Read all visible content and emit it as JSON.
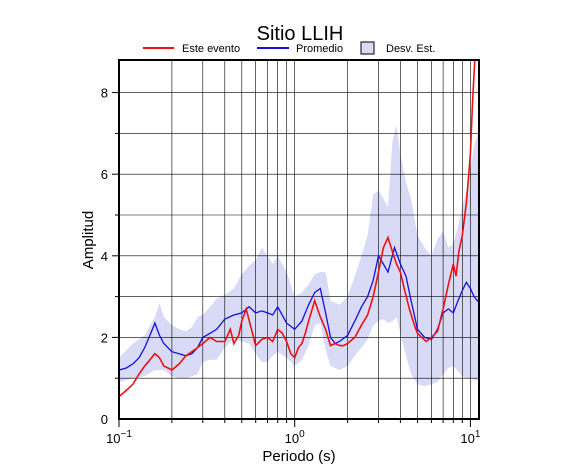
{
  "chart_data": {
    "type": "line",
    "title": "Sitio LLIH",
    "xlabel": "Periodo (s)",
    "ylabel": "Amplitud",
    "x_scale": "log",
    "xlim": [
      0.1,
      11.2
    ],
    "ylim": [
      0,
      8.8
    ],
    "x_ticks": [
      {
        "value": 0.1,
        "base": "10",
        "exp": "−1"
      },
      {
        "value": 1,
        "base": "10",
        "exp": "0"
      },
      {
        "value": 10,
        "base": "10",
        "exp": "1"
      }
    ],
    "y_ticks": [
      0,
      2,
      4,
      6,
      8
    ],
    "grid": true,
    "legend_position": "top",
    "colors": {
      "event": "#ee1111",
      "mean": "#1111dd",
      "band": "#d8daf6"
    },
    "series": [
      {
        "name": "Este evento",
        "color": "#ee1111",
        "points": [
          [
            0.1,
            0.55
          ],
          [
            0.11,
            0.7
          ],
          [
            0.12,
            0.85
          ],
          [
            0.13,
            1.1
          ],
          [
            0.14,
            1.3
          ],
          [
            0.15,
            1.45
          ],
          [
            0.16,
            1.6
          ],
          [
            0.17,
            1.5
          ],
          [
            0.18,
            1.3
          ],
          [
            0.19,
            1.25
          ],
          [
            0.2,
            1.2
          ],
          [
            0.22,
            1.35
          ],
          [
            0.24,
            1.55
          ],
          [
            0.26,
            1.65
          ],
          [
            0.28,
            1.75
          ],
          [
            0.3,
            1.85
          ],
          [
            0.33,
            2.0
          ],
          [
            0.36,
            1.9
          ],
          [
            0.4,
            1.9
          ],
          [
            0.43,
            2.2
          ],
          [
            0.45,
            1.85
          ],
          [
            0.48,
            2.05
          ],
          [
            0.5,
            2.4
          ],
          [
            0.53,
            2.7
          ],
          [
            0.56,
            2.3
          ],
          [
            0.6,
            1.8
          ],
          [
            0.65,
            1.95
          ],
          [
            0.7,
            2.0
          ],
          [
            0.75,
            1.9
          ],
          [
            0.8,
            2.2
          ],
          [
            0.85,
            2.1
          ],
          [
            0.9,
            1.9
          ],
          [
            0.95,
            1.6
          ],
          [
            1.0,
            1.5
          ],
          [
            1.05,
            1.75
          ],
          [
            1.1,
            1.85
          ],
          [
            1.15,
            2.1
          ],
          [
            1.2,
            2.4
          ],
          [
            1.3,
            2.9
          ],
          [
            1.4,
            2.5
          ],
          [
            1.5,
            2.2
          ],
          [
            1.6,
            1.8
          ],
          [
            1.7,
            1.85
          ],
          [
            1.8,
            1.8
          ],
          [
            1.9,
            1.8
          ],
          [
            2.0,
            1.85
          ],
          [
            2.2,
            2.0
          ],
          [
            2.4,
            2.3
          ],
          [
            2.6,
            2.55
          ],
          [
            2.8,
            3.0
          ],
          [
            3.0,
            3.6
          ],
          [
            3.2,
            4.2
          ],
          [
            3.4,
            4.45
          ],
          [
            3.6,
            4.1
          ],
          [
            3.8,
            3.8
          ],
          [
            4.0,
            3.6
          ],
          [
            4.2,
            3.2
          ],
          [
            4.5,
            2.7
          ],
          [
            4.8,
            2.3
          ],
          [
            5.0,
            2.1
          ],
          [
            5.3,
            2.0
          ],
          [
            5.6,
            1.9
          ],
          [
            6.0,
            2.0
          ],
          [
            6.5,
            2.15
          ],
          [
            7.0,
            2.7
          ],
          [
            7.5,
            3.3
          ],
          [
            8.0,
            3.8
          ],
          [
            8.3,
            3.5
          ],
          [
            8.6,
            4.1
          ],
          [
            9.0,
            4.5
          ],
          [
            9.5,
            5.3
          ],
          [
            10.0,
            6.5
          ],
          [
            10.3,
            7.8
          ],
          [
            10.6,
            8.8
          ]
        ]
      },
      {
        "name": "Promedio",
        "color": "#1111dd",
        "points": [
          [
            0.1,
            1.2
          ],
          [
            0.11,
            1.25
          ],
          [
            0.12,
            1.35
          ],
          [
            0.13,
            1.5
          ],
          [
            0.14,
            1.75
          ],
          [
            0.15,
            2.05
          ],
          [
            0.16,
            2.35
          ],
          [
            0.17,
            2.05
          ],
          [
            0.18,
            1.85
          ],
          [
            0.2,
            1.65
          ],
          [
            0.22,
            1.6
          ],
          [
            0.24,
            1.55
          ],
          [
            0.26,
            1.6
          ],
          [
            0.28,
            1.75
          ],
          [
            0.3,
            2.0
          ],
          [
            0.33,
            2.1
          ],
          [
            0.36,
            2.2
          ],
          [
            0.4,
            2.45
          ],
          [
            0.45,
            2.55
          ],
          [
            0.5,
            2.6
          ],
          [
            0.55,
            2.75
          ],
          [
            0.6,
            2.6
          ],
          [
            0.65,
            2.65
          ],
          [
            0.7,
            2.6
          ],
          [
            0.75,
            2.55
          ],
          [
            0.8,
            2.75
          ],
          [
            0.9,
            2.35
          ],
          [
            1.0,
            2.2
          ],
          [
            1.1,
            2.4
          ],
          [
            1.2,
            2.8
          ],
          [
            1.3,
            3.1
          ],
          [
            1.4,
            3.2
          ],
          [
            1.5,
            2.6
          ],
          [
            1.6,
            2.0
          ],
          [
            1.7,
            1.85
          ],
          [
            1.8,
            1.9
          ],
          [
            2.0,
            2.05
          ],
          [
            2.2,
            2.4
          ],
          [
            2.4,
            2.75
          ],
          [
            2.6,
            3.0
          ],
          [
            2.8,
            3.4
          ],
          [
            3.0,
            4.0
          ],
          [
            3.2,
            3.8
          ],
          [
            3.4,
            3.6
          ],
          [
            3.7,
            4.2
          ],
          [
            4.0,
            3.8
          ],
          [
            4.3,
            3.5
          ],
          [
            4.6,
            2.9
          ],
          [
            5.0,
            2.2
          ],
          [
            5.5,
            2.0
          ],
          [
            6.0,
            1.95
          ],
          [
            6.5,
            2.2
          ],
          [
            7.0,
            2.6
          ],
          [
            7.5,
            2.7
          ],
          [
            8.0,
            2.6
          ],
          [
            8.5,
            2.9
          ],
          [
            9.0,
            3.15
          ],
          [
            9.5,
            3.35
          ],
          [
            10.0,
            3.2
          ],
          [
            10.5,
            3.0
          ],
          [
            11.2,
            2.85
          ]
        ]
      }
    ],
    "band": {
      "name": "Desv. Est.",
      "color": "#d8daf6",
      "upper": [
        [
          0.1,
          1.5
        ],
        [
          0.12,
          1.85
        ],
        [
          0.14,
          2.05
        ],
        [
          0.16,
          2.5
        ],
        [
          0.17,
          2.85
        ],
        [
          0.18,
          2.5
        ],
        [
          0.2,
          2.3
        ],
        [
          0.22,
          2.2
        ],
        [
          0.24,
          2.15
        ],
        [
          0.26,
          2.25
        ],
        [
          0.28,
          2.5
        ],
        [
          0.3,
          2.55
        ],
        [
          0.33,
          2.75
        ],
        [
          0.36,
          2.95
        ],
        [
          0.4,
          3.05
        ],
        [
          0.45,
          3.2
        ],
        [
          0.5,
          3.55
        ],
        [
          0.55,
          3.75
        ],
        [
          0.6,
          3.9
        ],
        [
          0.65,
          4.2
        ],
        [
          0.7,
          4.0
        ],
        [
          0.75,
          3.8
        ],
        [
          0.8,
          4.0
        ],
        [
          0.9,
          3.6
        ],
        [
          1.0,
          3.0
        ],
        [
          1.1,
          3.1
        ],
        [
          1.2,
          3.3
        ],
        [
          1.3,
          3.55
        ],
        [
          1.4,
          3.6
        ],
        [
          1.5,
          3.6
        ],
        [
          1.6,
          2.9
        ],
        [
          1.8,
          2.8
        ],
        [
          2.0,
          3.0
        ],
        [
          2.2,
          3.5
        ],
        [
          2.4,
          4.0
        ],
        [
          2.6,
          4.5
        ],
        [
          2.8,
          5.5
        ],
        [
          3.0,
          5.6
        ],
        [
          3.2,
          5.4
        ],
        [
          3.4,
          5.2
        ],
        [
          3.6,
          6.8
        ],
        [
          3.8,
          7.2
        ],
        [
          4.0,
          6.5
        ],
        [
          4.3,
          5.8
        ],
        [
          4.6,
          5.4
        ],
        [
          5.0,
          4.5
        ],
        [
          5.5,
          4.2
        ],
        [
          6.0,
          4.0
        ],
        [
          6.5,
          4.4
        ],
        [
          7.0,
          4.6
        ],
        [
          7.5,
          4.2
        ],
        [
          8.0,
          4.3
        ],
        [
          8.6,
          4.8
        ],
        [
          9.0,
          5.2
        ],
        [
          9.5,
          5.6
        ],
        [
          10.0,
          6.1
        ],
        [
          10.5,
          6.7
        ],
        [
          11.2,
          7.1
        ]
      ],
      "lower": [
        [
          0.1,
          0.9
        ],
        [
          0.12,
          1.0
        ],
        [
          0.14,
          1.05
        ],
        [
          0.16,
          1.2
        ],
        [
          0.18,
          1.2
        ],
        [
          0.2,
          1.05
        ],
        [
          0.22,
          1.0
        ],
        [
          0.24,
          1.0
        ],
        [
          0.26,
          1.05
        ],
        [
          0.28,
          1.1
        ],
        [
          0.3,
          1.4
        ],
        [
          0.33,
          1.45
        ],
        [
          0.36,
          1.45
        ],
        [
          0.4,
          1.75
        ],
        [
          0.45,
          1.95
        ],
        [
          0.5,
          1.9
        ],
        [
          0.55,
          1.85
        ],
        [
          0.6,
          1.6
        ],
        [
          0.65,
          1.4
        ],
        [
          0.7,
          1.4
        ],
        [
          0.75,
          1.55
        ],
        [
          0.8,
          1.65
        ],
        [
          0.9,
          1.5
        ],
        [
          1.0,
          1.3
        ],
        [
          1.1,
          1.45
        ],
        [
          1.2,
          1.8
        ],
        [
          1.3,
          2.3
        ],
        [
          1.4,
          2.35
        ],
        [
          1.5,
          1.7
        ],
        [
          1.6,
          1.3
        ],
        [
          1.8,
          1.2
        ],
        [
          2.0,
          1.3
        ],
        [
          2.2,
          1.55
        ],
        [
          2.4,
          1.75
        ],
        [
          2.6,
          1.95
        ],
        [
          2.8,
          2.3
        ],
        [
          3.0,
          2.4
        ],
        [
          3.2,
          2.45
        ],
        [
          3.4,
          2.35
        ],
        [
          3.6,
          2.4
        ],
        [
          3.8,
          2.5
        ],
        [
          4.0,
          2.1
        ],
        [
          4.3,
          1.55
        ],
        [
          4.6,
          1.1
        ],
        [
          5.0,
          0.85
        ],
        [
          5.5,
          0.8
        ],
        [
          6.0,
          0.85
        ],
        [
          6.5,
          0.9
        ],
        [
          7.0,
          1.1
        ],
        [
          7.5,
          1.25
        ],
        [
          8.0,
          1.3
        ],
        [
          8.6,
          1.15
        ],
        [
          9.0,
          1.05
        ],
        [
          9.5,
          1.0
        ],
        [
          10.0,
          1.0
        ],
        [
          10.5,
          0.95
        ],
        [
          11.2,
          0.95
        ]
      ]
    }
  }
}
